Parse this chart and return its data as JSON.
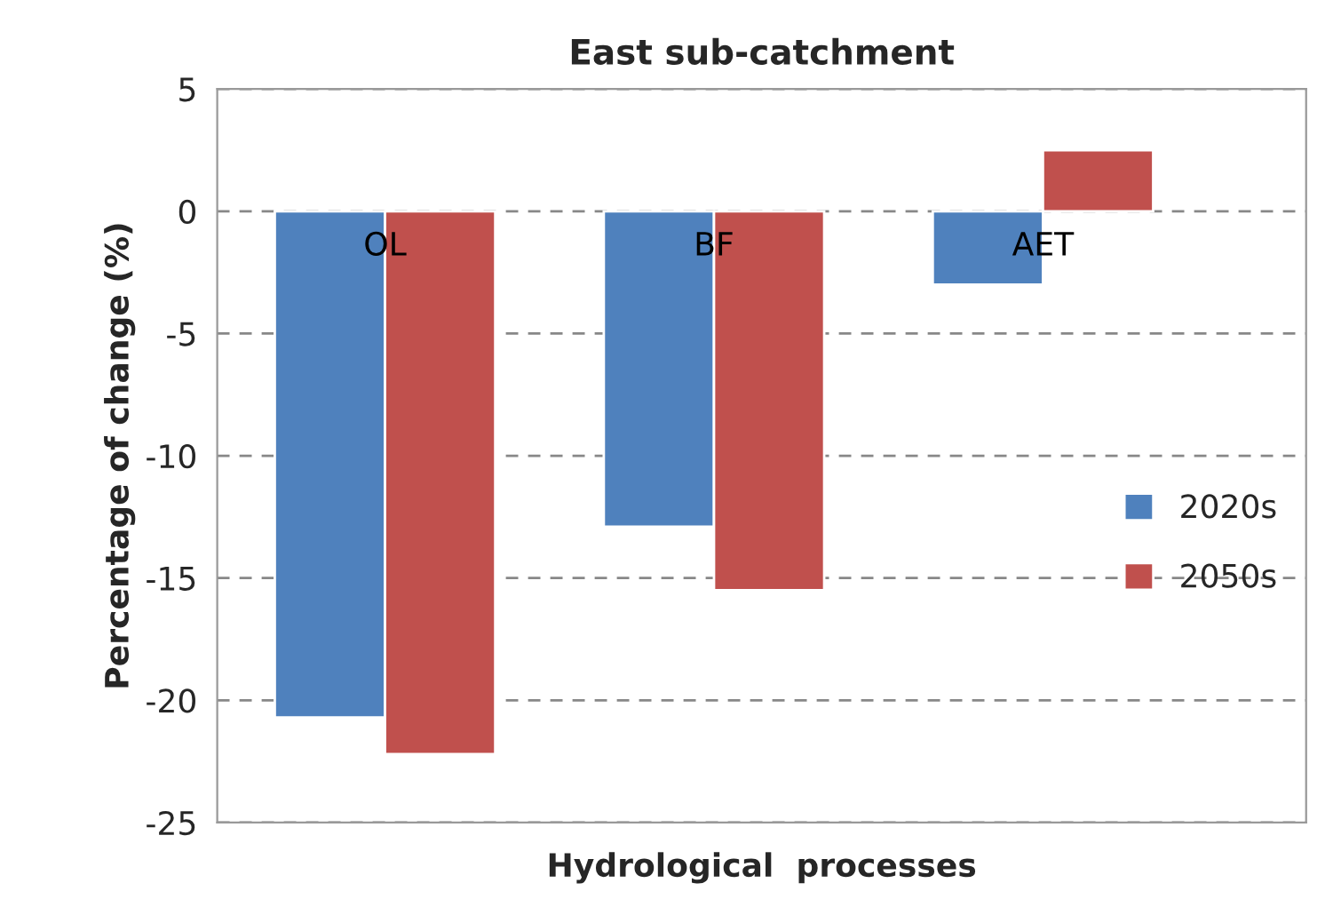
{
  "chart_data": {
    "type": "bar",
    "title": "East sub-catchment",
    "xlabel": "Hydrological  processes",
    "ylabel": "Percentage of change (%)",
    "categories": [
      "OL",
      "BF",
      "AET"
    ],
    "series": [
      {
        "name": "2020s",
        "color": "#4f81bd",
        "values": [
          -20.7,
          -12.9,
          -3.0
        ]
      },
      {
        "name": "2050s",
        "color": "#c0504d",
        "values": [
          -22.2,
          -15.5,
          2.5
        ]
      }
    ],
    "ylim": [
      -25,
      5
    ],
    "yticks": [
      -25,
      -20,
      -15,
      -10,
      -5,
      0,
      5
    ],
    "grid": "y",
    "legend": "right"
  }
}
